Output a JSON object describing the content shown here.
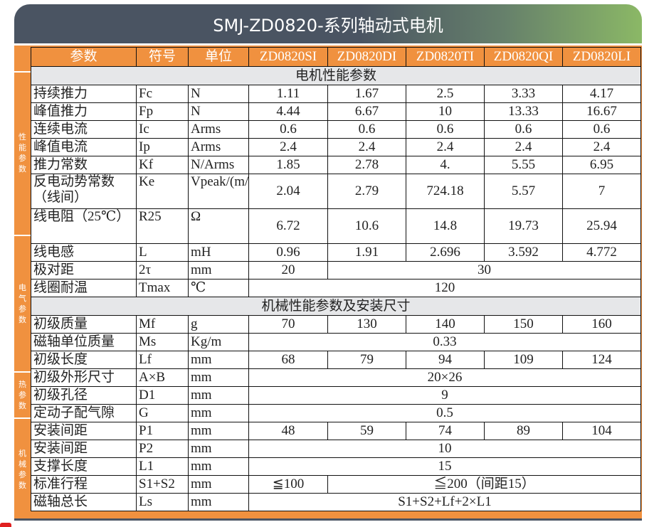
{
  "title": "SMJ-ZD0820-系列轴动式电机",
  "colors": {
    "header_dark": "#4a5462",
    "header_green": "#8bb866",
    "accent_orange": "#f0913f",
    "section_gray": "#e6e7e9"
  },
  "side_sections": [
    "性能参数",
    "电气参数",
    "热参数",
    "机械参数"
  ],
  "columns": [
    "参数",
    "符号",
    "单位",
    "ZD0820SI",
    "ZD0820DI",
    "ZD0820TI",
    "ZD0820QI",
    "ZD0820LI"
  ],
  "rows": [
    {
      "section": "电机性能参数"
    },
    {
      "cells": [
        {
          "t": "持续推力"
        },
        {
          "t": "Fc"
        },
        {
          "t": "N"
        },
        {
          "t": "1.11"
        },
        {
          "t": "1.67"
        },
        {
          "t": "2.5"
        },
        {
          "t": "3.33"
        },
        {
          "t": "4.17"
        }
      ]
    },
    {
      "cells": [
        {
          "t": "峰值推力"
        },
        {
          "t": "Fp"
        },
        {
          "t": "N"
        },
        {
          "t": "4.44"
        },
        {
          "t": "6.67"
        },
        {
          "t": "10"
        },
        {
          "t": "13.33"
        },
        {
          "t": "16.67"
        }
      ]
    },
    {
      "cells": [
        {
          "t": "连续电流"
        },
        {
          "t": "Ic"
        },
        {
          "t": "Arms"
        },
        {
          "t": "0.6"
        },
        {
          "t": "0.6"
        },
        {
          "t": "0.6"
        },
        {
          "t": "0.6"
        },
        {
          "t": "0.6"
        }
      ]
    },
    {
      "cells": [
        {
          "t": "峰值电流"
        },
        {
          "t": "Ip"
        },
        {
          "t": "Arms"
        },
        {
          "t": "2.4"
        },
        {
          "t": "2.4"
        },
        {
          "t": "2.4"
        },
        {
          "t": "2.4"
        },
        {
          "t": "2.4"
        }
      ]
    },
    {
      "cells": [
        {
          "t": "推力常数"
        },
        {
          "t": "Kf"
        },
        {
          "t": "N/Arms"
        },
        {
          "t": "1.85"
        },
        {
          "t": "2.78"
        },
        {
          "t": "4."
        },
        {
          "t": "5.55"
        },
        {
          "t": "6.95"
        }
      ]
    },
    {
      "tall": true,
      "cells": [
        {
          "t": "反电动势常数（线间）"
        },
        {
          "t": "Ke"
        },
        {
          "t": "Vpeak/(m/s)"
        },
        {
          "t": "2.04"
        },
        {
          "t": "2.79"
        },
        {
          "t": "724.18"
        },
        {
          "t": "5.57"
        },
        {
          "t": "7"
        }
      ]
    },
    {
      "tall": true,
      "cells": [
        {
          "t": "线电阻（25℃）"
        },
        {
          "t": "R25"
        },
        {
          "t": "Ω"
        },
        {
          "t": "6.72"
        },
        {
          "t": "10.6"
        },
        {
          "t": "14.8"
        },
        {
          "t": "19.73"
        },
        {
          "t": "25.94"
        }
      ]
    },
    {
      "cells": [
        {
          "t": "线电感"
        },
        {
          "t": "L"
        },
        {
          "t": "mH"
        },
        {
          "t": "0.96"
        },
        {
          "t": "1.91"
        },
        {
          "t": "2.696"
        },
        {
          "t": "3.592"
        },
        {
          "t": "4.772"
        }
      ]
    },
    {
      "cells": [
        {
          "t": "极对距"
        },
        {
          "t": "2τ"
        },
        {
          "t": "mm"
        },
        {
          "t": "20"
        },
        {
          "t": "30",
          "span": 4
        }
      ]
    },
    {
      "cells": [
        {
          "t": "线圈耐温"
        },
        {
          "t": "Tmax"
        },
        {
          "t": "℃"
        },
        {
          "t": "120",
          "span": 5
        }
      ]
    },
    {
      "section": "机械性能参数及安装尺寸"
    },
    {
      "cells": [
        {
          "t": "初级质量"
        },
        {
          "t": "Mf"
        },
        {
          "t": "g"
        },
        {
          "t": "70"
        },
        {
          "t": "130"
        },
        {
          "t": "140"
        },
        {
          "t": "150"
        },
        {
          "t": "160"
        }
      ]
    },
    {
      "cells": [
        {
          "t": "磁轴单位质量"
        },
        {
          "t": "Ms"
        },
        {
          "t": "Kg/m"
        },
        {
          "t": "0.33",
          "span": 5
        }
      ]
    },
    {
      "cells": [
        {
          "t": "初级长度"
        },
        {
          "t": "Lf"
        },
        {
          "t": "mm"
        },
        {
          "t": "68"
        },
        {
          "t": "79"
        },
        {
          "t": "94"
        },
        {
          "t": "109"
        },
        {
          "t": "124"
        }
      ]
    },
    {
      "cells": [
        {
          "t": "初级外形尺寸"
        },
        {
          "t": "A×B"
        },
        {
          "t": "mm"
        },
        {
          "t": "20×26",
          "span": 5
        }
      ]
    },
    {
      "cells": [
        {
          "t": "初级孔径"
        },
        {
          "t": "D1"
        },
        {
          "t": "mm"
        },
        {
          "t": "9",
          "span": 5
        }
      ]
    },
    {
      "cells": [
        {
          "t": "定动子配气隙"
        },
        {
          "t": "G"
        },
        {
          "t": "mm"
        },
        {
          "t": "0.5",
          "span": 5
        }
      ]
    },
    {
      "cells": [
        {
          "t": "安装间距"
        },
        {
          "t": "P1"
        },
        {
          "t": "mm"
        },
        {
          "t": "48"
        },
        {
          "t": "59"
        },
        {
          "t": "74"
        },
        {
          "t": "89"
        },
        {
          "t": "104"
        }
      ]
    },
    {
      "cells": [
        {
          "t": "安装间距"
        },
        {
          "t": "P2"
        },
        {
          "t": "mm"
        },
        {
          "t": "10",
          "span": 5
        }
      ]
    },
    {
      "cells": [
        {
          "t": "支撑长度"
        },
        {
          "t": "L1"
        },
        {
          "t": "mm"
        },
        {
          "t": "15",
          "span": 5
        }
      ]
    },
    {
      "cells": [
        {
          "t": "标准行程"
        },
        {
          "t": "S1+S2"
        },
        {
          "t": "mm"
        },
        {
          "t": "≦100"
        },
        {
          "t": "≦200（间距15）",
          "span": 4
        }
      ]
    },
    {
      "cells": [
        {
          "t": "磁轴总长"
        },
        {
          "t": "Ls"
        },
        {
          "t": "mm"
        },
        {
          "t": "S1+S2+Lf+2×L1",
          "span": 5
        }
      ]
    }
  ]
}
